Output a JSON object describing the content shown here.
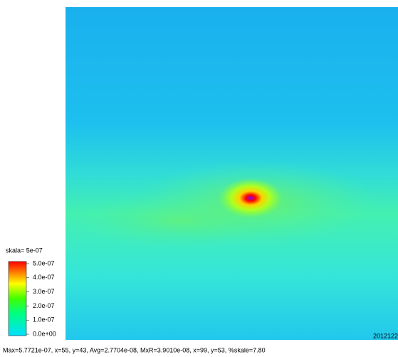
{
  "chart_data": {
    "type": "heatmap",
    "scale_label": "skala= 5e-07",
    "clim": [
      0,
      5e-07
    ],
    "cticks": [
      {
        "value": 0,
        "label": "0.0e+00"
      },
      {
        "value": 1e-07,
        "label": "1.0e-07"
      },
      {
        "value": 2e-07,
        "label": "2.0e-07"
      },
      {
        "value": 3e-07,
        "label": "3.0e-07"
      },
      {
        "value": 4e-07,
        "label": "4.0e-07"
      },
      {
        "value": 5e-07,
        "label": "5.0e-07"
      }
    ],
    "caption": "Max=5.7721e-07, x=55, y=43, Avg=2.7704e-08, MxR=3.9010e-08, x=99, y=53, %skale=7.80",
    "timestamp": "2012122"
  }
}
